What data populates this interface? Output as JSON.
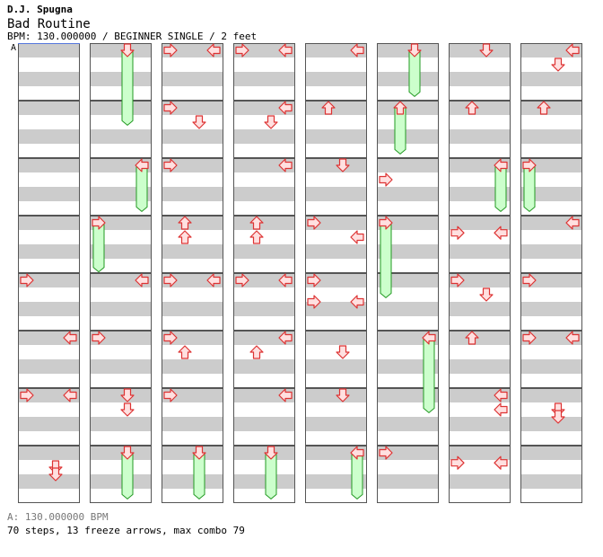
{
  "header": {
    "artist": "D.J. Spugna",
    "title": "Bad Routine",
    "info": "BPM: 130.000000 / BEGINNER SINGLE / 2 feet"
  },
  "bpm_marker": {
    "label": "A"
  },
  "footer": {
    "bpm_note": "A: 130.000000 BPM",
    "stats": "70 steps, 13 freeze arrows, max combo 79"
  },
  "colors": {
    "stripe": "#cccccc",
    "arrow_fill": "#ffe0e0",
    "arrow_stroke": "#dd3333",
    "freeze_fill": "#ccffcc",
    "freeze_stroke": "#229922",
    "bpm_line": "#5577dd"
  },
  "chart_data": {
    "type": "step-chart",
    "columns": 8,
    "measures_per_column": 8,
    "rows_per_measure": 4,
    "lanes": [
      "left",
      "down",
      "up",
      "right"
    ],
    "steps": [
      {
        "c": 0,
        "m": 4,
        "r": 0,
        "l": 0
      },
      {
        "c": 0,
        "m": 5,
        "r": 0,
        "l": 3
      },
      {
        "c": 0,
        "m": 6,
        "r": 0,
        "l": 0
      },
      {
        "c": 0,
        "m": 6,
        "r": 0,
        "l": 3
      },
      {
        "c": 0,
        "m": 7,
        "r": 1,
        "l": 2
      },
      {
        "c": 0,
        "m": 7,
        "r": 1.5,
        "l": 2
      },
      {
        "c": 1,
        "m": 4,
        "r": 0,
        "l": 3
      },
      {
        "c": 1,
        "m": 5,
        "r": 0,
        "l": 0
      },
      {
        "c": 1,
        "m": 6,
        "r": 0,
        "l": 2
      },
      {
        "c": 1,
        "m": 6,
        "r": 1,
        "l": 2
      },
      {
        "c": 2,
        "m": 0,
        "r": 0,
        "l": 0
      },
      {
        "c": 2,
        "m": 0,
        "r": 0,
        "l": 3
      },
      {
        "c": 2,
        "m": 1,
        "r": 0,
        "l": 0
      },
      {
        "c": 2,
        "m": 1,
        "r": 1,
        "l": 2
      },
      {
        "c": 2,
        "m": 2,
        "r": 0,
        "l": 0
      },
      {
        "c": 2,
        "m": 3,
        "r": 0,
        "l": 1
      },
      {
        "c": 2,
        "m": 3,
        "r": 1,
        "l": 1
      },
      {
        "c": 2,
        "m": 4,
        "r": 0,
        "l": 0
      },
      {
        "c": 2,
        "m": 4,
        "r": 0,
        "l": 3
      },
      {
        "c": 2,
        "m": 5,
        "r": 0,
        "l": 0
      },
      {
        "c": 2,
        "m": 5,
        "r": 1,
        "l": 1
      },
      {
        "c": 2,
        "m": 6,
        "r": 0,
        "l": 0
      },
      {
        "c": 3,
        "m": 0,
        "r": 0,
        "l": 0
      },
      {
        "c": 3,
        "m": 0,
        "r": 0,
        "l": 3
      },
      {
        "c": 3,
        "m": 1,
        "r": 0,
        "l": 3
      },
      {
        "c": 3,
        "m": 1,
        "r": 1,
        "l": 2
      },
      {
        "c": 3,
        "m": 2,
        "r": 0,
        "l": 3
      },
      {
        "c": 3,
        "m": 3,
        "r": 0,
        "l": 1
      },
      {
        "c": 3,
        "m": 3,
        "r": 1,
        "l": 1
      },
      {
        "c": 3,
        "m": 4,
        "r": 0,
        "l": 0
      },
      {
        "c": 3,
        "m": 4,
        "r": 0,
        "l": 3
      },
      {
        "c": 3,
        "m": 5,
        "r": 0,
        "l": 3
      },
      {
        "c": 3,
        "m": 5,
        "r": 1,
        "l": 1
      },
      {
        "c": 3,
        "m": 6,
        "r": 0,
        "l": 3
      },
      {
        "c": 4,
        "m": 0,
        "r": 0,
        "l": 3
      },
      {
        "c": 4,
        "m": 1,
        "r": 0,
        "l": 1
      },
      {
        "c": 4,
        "m": 2,
        "r": 0,
        "l": 2
      },
      {
        "c": 4,
        "m": 3,
        "r": 0,
        "l": 0
      },
      {
        "c": 4,
        "m": 3,
        "r": 1,
        "l": 3
      },
      {
        "c": 4,
        "m": 4,
        "r": 0,
        "l": 0
      },
      {
        "c": 4,
        "m": 4,
        "r": 1.5,
        "l": 0
      },
      {
        "c": 4,
        "m": 4,
        "r": 1.5,
        "l": 3
      },
      {
        "c": 4,
        "m": 5,
        "r": 1,
        "l": 2
      },
      {
        "c": 4,
        "m": 6,
        "r": 0,
        "l": 2
      },
      {
        "c": 5,
        "m": 2,
        "r": 1,
        "l": 0
      },
      {
        "c": 5,
        "m": 7,
        "r": 0,
        "l": 0
      },
      {
        "c": 6,
        "m": 0,
        "r": 0,
        "l": 2
      },
      {
        "c": 6,
        "m": 1,
        "r": 0,
        "l": 1
      },
      {
        "c": 6,
        "m": 3,
        "r": 0.7,
        "l": 0
      },
      {
        "c": 6,
        "m": 3,
        "r": 0.7,
        "l": 3
      },
      {
        "c": 6,
        "m": 4,
        "r": 0,
        "l": 0
      },
      {
        "c": 6,
        "m": 4,
        "r": 1,
        "l": 2
      },
      {
        "c": 6,
        "m": 5,
        "r": 0,
        "l": 1
      },
      {
        "c": 6,
        "m": 6,
        "r": 0,
        "l": 3
      },
      {
        "c": 6,
        "m": 6,
        "r": 1,
        "l": 3
      },
      {
        "c": 6,
        "m": 7,
        "r": 0.7,
        "l": 0
      },
      {
        "c": 6,
        "m": 7,
        "r": 0.7,
        "l": 3
      },
      {
        "c": 7,
        "m": 0,
        "r": 0,
        "l": 3
      },
      {
        "c": 7,
        "m": 0,
        "r": 1,
        "l": 2
      },
      {
        "c": 7,
        "m": 1,
        "r": 0,
        "l": 1
      },
      {
        "c": 7,
        "m": 3,
        "r": 0,
        "l": 3
      },
      {
        "c": 7,
        "m": 4,
        "r": 0,
        "l": 0
      },
      {
        "c": 7,
        "m": 5,
        "r": 0,
        "l": 0
      },
      {
        "c": 7,
        "m": 5,
        "r": 0,
        "l": 3
      },
      {
        "c": 7,
        "m": 6,
        "r": 1,
        "l": 2
      },
      {
        "c": 7,
        "m": 6,
        "r": 1.5,
        "l": 2
      }
    ],
    "freezes": [
      {
        "c": 1,
        "m": 0,
        "r": 0,
        "l": 2,
        "len": 2.2
      },
      {
        "c": 1,
        "m": 2,
        "r": 0,
        "l": 3,
        "len": 1.2
      },
      {
        "c": 1,
        "m": 3,
        "r": 0,
        "l": 0,
        "len": 1.3
      },
      {
        "c": 1,
        "m": 7,
        "r": 0,
        "l": 2,
        "len": 1.2
      },
      {
        "c": 2,
        "m": 7,
        "r": 0,
        "l": 2,
        "len": 1.2
      },
      {
        "c": 3,
        "m": 7,
        "r": 0,
        "l": 2,
        "len": 1.2
      },
      {
        "c": 4,
        "m": 7,
        "r": 0,
        "l": 3,
        "len": 1.2
      },
      {
        "c": 5,
        "m": 0,
        "r": 0,
        "l": 2,
        "len": 1.2
      },
      {
        "c": 5,
        "m": 1,
        "r": 0,
        "l": 1,
        "len": 1.2
      },
      {
        "c": 5,
        "m": 3,
        "r": 0,
        "l": 0,
        "len": 2.2
      },
      {
        "c": 5,
        "m": 5,
        "r": 0,
        "l": 3,
        "len": 2.2
      },
      {
        "c": 6,
        "m": 2,
        "r": 0,
        "l": 3,
        "len": 1.2
      },
      {
        "c": 7,
        "m": 2,
        "r": 0,
        "l": 0,
        "len": 1.2
      }
    ]
  }
}
